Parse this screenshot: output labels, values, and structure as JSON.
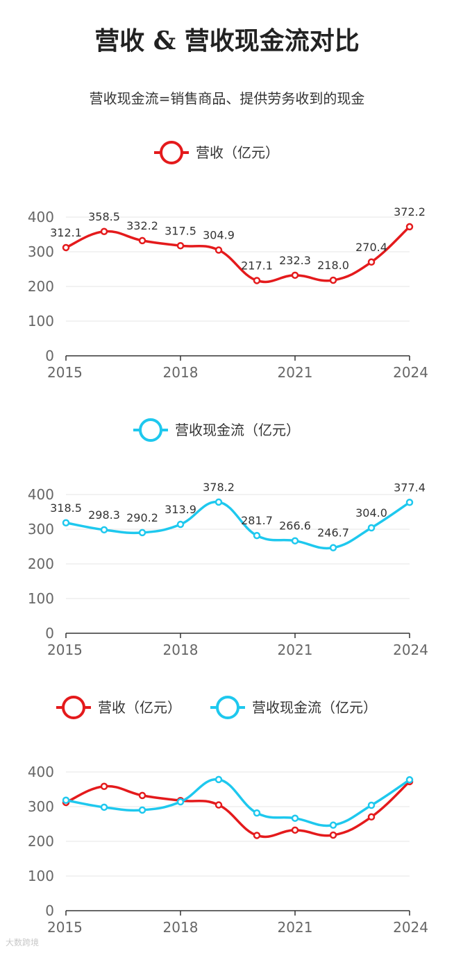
{
  "title": "营收 & 营收现金流对比",
  "subtitle": "营收现金流=销售商品、提供劳务收到的现金",
  "colors": {
    "revenue": "#e41a1c",
    "cashflow": "#1ec8ee",
    "grid": "#e6e6e6",
    "axis": "#333333"
  },
  "watermark": "大数跨境",
  "chart_data": [
    {
      "type": "line",
      "x": [
        2015,
        2016,
        2017,
        2018,
        2019,
        2020,
        2021,
        2022,
        2023,
        2024
      ],
      "x_ticks": [
        "2015",
        "2018",
        "2021",
        "2024"
      ],
      "ylim": [
        0,
        400
      ],
      "y_ticks": [
        "0",
        "100",
        "200",
        "300",
        "400"
      ],
      "legend": "top-center",
      "grid": true,
      "series": [
        {
          "name": "营收（亿元）",
          "color": "#e41a1c",
          "values": [
            312.1,
            358.5,
            332.2,
            317.5,
            304.9,
            217.1,
            232.3,
            218.0,
            270.4,
            372.2
          ],
          "labels": [
            "312.1",
            "358.5",
            "332.2",
            "317.5",
            "304.9",
            "217.1",
            "232.3",
            "218.0",
            "270.4",
            "372.2"
          ]
        }
      ]
    },
    {
      "type": "line",
      "x": [
        2015,
        2016,
        2017,
        2018,
        2019,
        2020,
        2021,
        2022,
        2023,
        2024
      ],
      "x_ticks": [
        "2015",
        "2018",
        "2021",
        "2024"
      ],
      "ylim": [
        0,
        400
      ],
      "y_ticks": [
        "0",
        "100",
        "200",
        "300",
        "400"
      ],
      "legend": "top-center",
      "grid": true,
      "series": [
        {
          "name": "营收现金流（亿元）",
          "color": "#1ec8ee",
          "values": [
            318.5,
            298.3,
            290.2,
            313.9,
            378.2,
            281.7,
            266.6,
            246.7,
            304.0,
            377.4
          ],
          "labels": [
            "318.5",
            "298.3",
            "290.2",
            "313.9",
            "378.2",
            "281.7",
            "266.6",
            "246.7",
            "304.0",
            "377.4"
          ]
        }
      ]
    },
    {
      "type": "line",
      "x": [
        2015,
        2016,
        2017,
        2018,
        2019,
        2020,
        2021,
        2022,
        2023,
        2024
      ],
      "x_ticks": [
        "2015",
        "2018",
        "2021",
        "2024"
      ],
      "ylim": [
        0,
        400
      ],
      "y_ticks": [
        "0",
        "100",
        "200",
        "300",
        "400"
      ],
      "legend": "top-center",
      "grid": true,
      "series": [
        {
          "name": "营收（亿元）",
          "color": "#e41a1c",
          "values": [
            312.1,
            358.5,
            332.2,
            317.5,
            304.9,
            217.1,
            232.3,
            218.0,
            270.4,
            372.2
          ]
        },
        {
          "name": "营收现金流（亿元）",
          "color": "#1ec8ee",
          "values": [
            318.5,
            298.3,
            290.2,
            313.9,
            378.2,
            281.7,
            266.6,
            246.7,
            304.0,
            377.4
          ]
        }
      ]
    }
  ]
}
